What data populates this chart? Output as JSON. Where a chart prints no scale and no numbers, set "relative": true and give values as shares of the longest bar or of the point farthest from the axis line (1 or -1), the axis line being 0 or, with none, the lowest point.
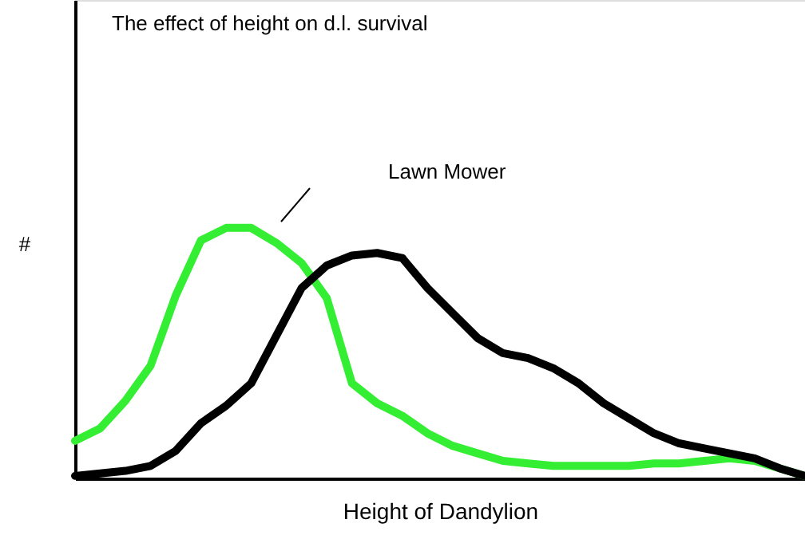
{
  "chart_data": {
    "type": "line",
    "title": "The effect of height on d.l. survival",
    "xlabel": "Height of Dandylion",
    "ylabel": "#",
    "categories": [
      null,
      null,
      null,
      null,
      null,
      null,
      null,
      null,
      null,
      null,
      null,
      null,
      null,
      null,
      null,
      null,
      null,
      null,
      null,
      null,
      null,
      null,
      null,
      null,
      null,
      null,
      null,
      null,
      null,
      null
    ],
    "relative": true,
    "tick_labels": false,
    "grid": false,
    "legend": false,
    "series": [
      {
        "name": "Lawn Mower",
        "color": "#33ee33",
        "values": [
          0.15,
          0.2,
          0.31,
          0.45,
          0.73,
          0.95,
          1,
          1,
          0.94,
          0.86,
          0.72,
          0.38,
          0.3,
          0.25,
          0.18,
          0.13,
          0.1,
          0.07,
          0.06,
          0.05,
          0.05,
          0.05,
          0.05,
          0.06,
          0.06,
          0.07,
          0.08,
          0.07,
          0.04,
          0.01
        ]
      },
      {
        "color": "#000000",
        "values": [
          0.01,
          0.02,
          0.03,
          0.05,
          0.11,
          0.22,
          0.29,
          0.38,
          0.57,
          0.76,
          0.85,
          0.89,
          0.9,
          0.88,
          0.76,
          0.66,
          0.56,
          0.5,
          0.48,
          0.44,
          0.38,
          0.3,
          0.24,
          0.18,
          0.14,
          0.12,
          0.1,
          0.08,
          0.04,
          0.01
        ]
      }
    ]
  }
}
